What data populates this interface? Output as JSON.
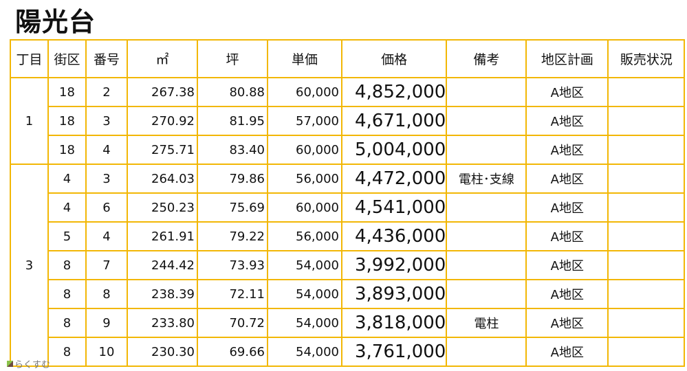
{
  "title": "陽光台",
  "headers": [
    "丁目",
    "街区",
    "番号",
    "㎡",
    "坪",
    "単価",
    "価格",
    "備考",
    "地区計画",
    "販売状況"
  ],
  "groups": [
    {
      "chome": "1",
      "rows": [
        {
          "block": "18",
          "no": "2",
          "m2": "267.38",
          "tsubo": "80.88",
          "unit": "60,000",
          "price": "4,852,000",
          "note": "",
          "plan": "A地区",
          "status": ""
        },
        {
          "block": "18",
          "no": "3",
          "m2": "270.92",
          "tsubo": "81.95",
          "unit": "57,000",
          "price": "4,671,000",
          "note": "",
          "plan": "A地区",
          "status": ""
        },
        {
          "block": "18",
          "no": "4",
          "m2": "275.71",
          "tsubo": "83.40",
          "unit": "60,000",
          "price": "5,004,000",
          "note": "",
          "plan": "A地区",
          "status": ""
        }
      ]
    },
    {
      "chome": "3",
      "rows": [
        {
          "block": "4",
          "no": "3",
          "m2": "264.03",
          "tsubo": "79.86",
          "unit": "56,000",
          "price": "4,472,000",
          "note": "電柱･支線",
          "plan": "A地区",
          "status": ""
        },
        {
          "block": "4",
          "no": "6",
          "m2": "250.23",
          "tsubo": "75.69",
          "unit": "60,000",
          "price": "4,541,000",
          "note": "",
          "plan": "A地区",
          "status": ""
        },
        {
          "block": "5",
          "no": "4",
          "m2": "261.91",
          "tsubo": "79.22",
          "unit": "56,000",
          "price": "4,436,000",
          "note": "",
          "plan": "A地区",
          "status": ""
        },
        {
          "block": "8",
          "no": "7",
          "m2": "244.42",
          "tsubo": "73.93",
          "unit": "54,000",
          "price": "3,992,000",
          "note": "",
          "plan": "A地区",
          "status": ""
        },
        {
          "block": "8",
          "no": "8",
          "m2": "238.39",
          "tsubo": "72.11",
          "unit": "54,000",
          "price": "3,893,000",
          "note": "",
          "plan": "A地区",
          "status": ""
        },
        {
          "block": "8",
          "no": "9",
          "m2": "233.80",
          "tsubo": "70.72",
          "unit": "54,000",
          "price": "3,818,000",
          "note": "電柱",
          "plan": "A地区",
          "status": ""
        },
        {
          "block": "8",
          "no": "10",
          "m2": "230.30",
          "tsubo": "69.66",
          "unit": "54,000",
          "price": "3,761,000",
          "note": "",
          "plan": "A地区",
          "status": ""
        }
      ]
    }
  ],
  "watermark": "らくすむ",
  "colors": {
    "border": "#f2b705"
  }
}
